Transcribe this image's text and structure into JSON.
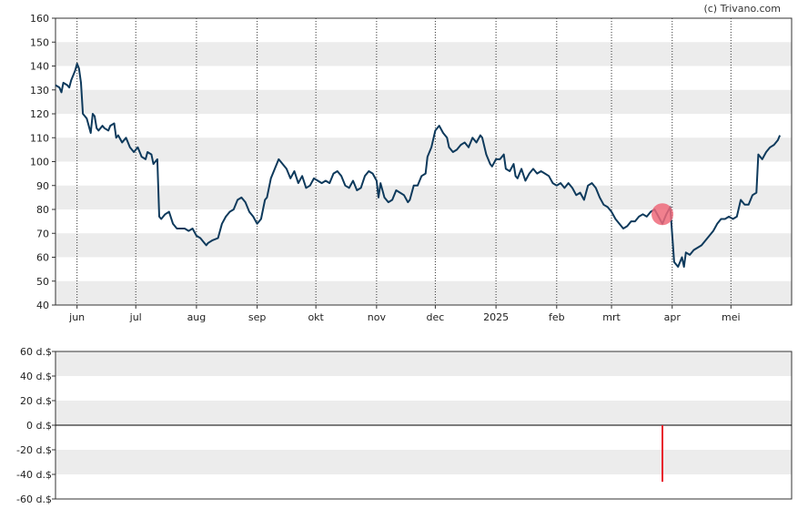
{
  "credit": "(c) Trivano.com",
  "chart_data": [
    {
      "type": "line",
      "ylim": [
        40,
        160
      ],
      "y_ticks": [
        40,
        50,
        60,
        70,
        80,
        90,
        100,
        110,
        120,
        130,
        140,
        150,
        160
      ],
      "x_tick_labels": [
        "jun",
        "jul",
        "aug",
        "sep",
        "okt",
        "nov",
        "dec",
        "2025",
        "feb",
        "mrt",
        "apr",
        "mei"
      ],
      "grid": "alternating horizontal bands, vertical dotted lines at month starts",
      "colors": {
        "line": "#0e3a5c",
        "marker": "#ef6a7a",
        "band": "#ececec"
      },
      "x_range_days": [
        0,
        376
      ],
      "month_tick_days": [
        11,
        41,
        72,
        103,
        133,
        164,
        194,
        225,
        256,
        284,
        315,
        345
      ],
      "series": [
        {
          "points": [
            [
              0,
              132
            ],
            [
              2,
              131
            ],
            [
              3,
              129
            ],
            [
              4,
              133
            ],
            [
              6,
              132
            ],
            [
              7,
              131
            ],
            [
              8,
              134
            ],
            [
              10,
              138
            ],
            [
              11,
              141
            ],
            [
              12,
              139
            ],
            [
              13,
              133
            ],
            [
              14,
              120
            ],
            [
              15,
              119
            ],
            [
              16,
              118
            ],
            [
              18,
              112
            ],
            [
              19,
              120
            ],
            [
              20,
              119
            ],
            [
              21,
              114
            ],
            [
              22,
              113
            ],
            [
              24,
              115
            ],
            [
              25,
              114
            ],
            [
              27,
              113
            ],
            [
              28,
              115
            ],
            [
              30,
              116
            ],
            [
              31,
              110
            ],
            [
              32,
              111
            ],
            [
              34,
              108
            ],
            [
              36,
              110
            ],
            [
              38,
              106
            ],
            [
              40,
              104
            ],
            [
              42,
              106
            ],
            [
              44,
              102
            ],
            [
              46,
              101
            ],
            [
              47,
              104
            ],
            [
              49,
              103
            ],
            [
              50,
              99
            ],
            [
              52,
              101
            ],
            [
              53,
              77
            ],
            [
              54,
              76
            ],
            [
              56,
              78
            ],
            [
              58,
              79
            ],
            [
              60,
              74
            ],
            [
              62,
              72
            ],
            [
              64,
              72
            ],
            [
              66,
              72
            ],
            [
              68,
              71
            ],
            [
              70,
              72
            ],
            [
              72,
              69
            ],
            [
              74,
              68
            ],
            [
              76,
              66
            ],
            [
              77,
              65
            ],
            [
              78,
              66
            ],
            [
              80,
              67
            ],
            [
              83,
              68
            ],
            [
              85,
              74
            ],
            [
              87,
              77
            ],
            [
              89,
              79
            ],
            [
              91,
              80
            ],
            [
              93,
              84
            ],
            [
              95,
              85
            ],
            [
              97,
              83
            ],
            [
              99,
              79
            ],
            [
              101,
              77
            ],
            [
              103,
              74
            ],
            [
              105,
              76
            ],
            [
              107,
              84
            ],
            [
              108,
              85
            ],
            [
              110,
              93
            ],
            [
              112,
              97
            ],
            [
              114,
              101
            ],
            [
              116,
              99
            ],
            [
              118,
              97
            ],
            [
              120,
              93
            ],
            [
              122,
              96
            ],
            [
              124,
              91
            ],
            [
              126,
              94
            ],
            [
              128,
              89
            ],
            [
              130,
              90
            ],
            [
              132,
              93
            ],
            [
              134,
              92
            ],
            [
              136,
              91
            ],
            [
              138,
              92
            ],
            [
              140,
              91
            ],
            [
              142,
              95
            ],
            [
              144,
              96
            ],
            [
              146,
              94
            ],
            [
              148,
              90
            ],
            [
              150,
              89
            ],
            [
              152,
              92
            ],
            [
              154,
              88
            ],
            [
              156,
              89
            ],
            [
              158,
              94
            ],
            [
              160,
              96
            ],
            [
              162,
              95
            ],
            [
              164,
              92
            ],
            [
              165,
              85
            ],
            [
              166,
              91
            ],
            [
              168,
              85
            ],
            [
              170,
              83
            ],
            [
              172,
              84
            ],
            [
              174,
              88
            ],
            [
              176,
              87
            ],
            [
              178,
              86
            ],
            [
              180,
              83
            ],
            [
              181,
              84
            ],
            [
              183,
              90
            ],
            [
              185,
              90
            ],
            [
              187,
              94
            ],
            [
              189,
              95
            ],
            [
              190,
              102
            ],
            [
              192,
              106
            ],
            [
              194,
              113
            ],
            [
              196,
              115
            ],
            [
              198,
              112
            ],
            [
              200,
              110
            ],
            [
              201,
              106
            ],
            [
              203,
              104
            ],
            [
              205,
              105
            ],
            [
              207,
              107
            ],
            [
              209,
              108
            ],
            [
              211,
              106
            ],
            [
              213,
              110
            ],
            [
              215,
              108
            ],
            [
              217,
              111
            ],
            [
              218,
              110
            ],
            [
              220,
              103
            ],
            [
              222,
              99
            ],
            [
              223,
              98
            ],
            [
              225,
              101
            ],
            [
              227,
              101
            ],
            [
              229,
              103
            ],
            [
              230,
              97
            ],
            [
              232,
              96
            ],
            [
              234,
              99
            ],
            [
              235,
              94
            ],
            [
              236,
              93
            ],
            [
              238,
              97
            ],
            [
              240,
              92
            ],
            [
              242,
              95
            ],
            [
              244,
              97
            ],
            [
              246,
              95
            ],
            [
              248,
              96
            ],
            [
              250,
              95
            ],
            [
              252,
              94
            ],
            [
              254,
              91
            ],
            [
              256,
              90
            ],
            [
              258,
              91
            ],
            [
              260,
              89
            ],
            [
              262,
              91
            ],
            [
              264,
              89
            ],
            [
              266,
              86
            ],
            [
              268,
              87
            ],
            [
              270,
              84
            ],
            [
              272,
              90
            ],
            [
              274,
              91
            ],
            [
              276,
              89
            ],
            [
              278,
              85
            ],
            [
              280,
              82
            ],
            [
              282,
              81
            ],
            [
              284,
              79
            ],
            [
              286,
              76
            ],
            [
              288,
              74
            ],
            [
              290,
              72
            ],
            [
              292,
              73
            ],
            [
              294,
              75
            ],
            [
              296,
              75
            ],
            [
              298,
              77
            ],
            [
              300,
              78
            ],
            [
              302,
              77
            ],
            [
              304,
              79
            ],
            [
              306,
              80
            ],
            [
              308,
              77
            ],
            [
              310,
              74
            ],
            [
              312,
              78
            ],
            [
              314,
              81
            ],
            [
              316,
              58
            ],
            [
              318,
              56
            ],
            [
              320,
              60
            ],
            [
              321,
              56
            ],
            [
              322,
              62
            ],
            [
              324,
              61
            ],
            [
              326,
              63
            ],
            [
              328,
              64
            ],
            [
              330,
              65
            ],
            [
              332,
              67
            ],
            [
              334,
              69
            ],
            [
              336,
              71
            ],
            [
              338,
              74
            ],
            [
              340,
              76
            ],
            [
              342,
              76
            ],
            [
              344,
              77
            ],
            [
              346,
              76
            ],
            [
              348,
              77
            ],
            [
              350,
              84
            ],
            [
              352,
              82
            ],
            [
              354,
              82
            ],
            [
              356,
              86
            ],
            [
              358,
              87
            ],
            [
              359,
              103
            ],
            [
              361,
              101
            ],
            [
              363,
              104
            ],
            [
              365,
              106
            ],
            [
              367,
              107
            ],
            [
              369,
              109
            ],
            [
              370,
              111
            ]
          ]
        }
      ],
      "marker": {
        "x": 310,
        "y": 78
      }
    },
    {
      "type": "bar",
      "ylim": [
        -60,
        60
      ],
      "y_tick_labels": [
        "60 d.$",
        "40 d.$",
        "20 d.$",
        "0 d.$",
        "-20 d.$",
        "-40 d.$",
        "-60 d.$"
      ],
      "y_tick_values": [
        60,
        40,
        20,
        0,
        -20,
        -40,
        -60
      ],
      "colors": {
        "bar": "#e8192c",
        "zero_line": "#000000"
      },
      "bars": [
        {
          "x": 310,
          "value": -46
        }
      ]
    }
  ]
}
